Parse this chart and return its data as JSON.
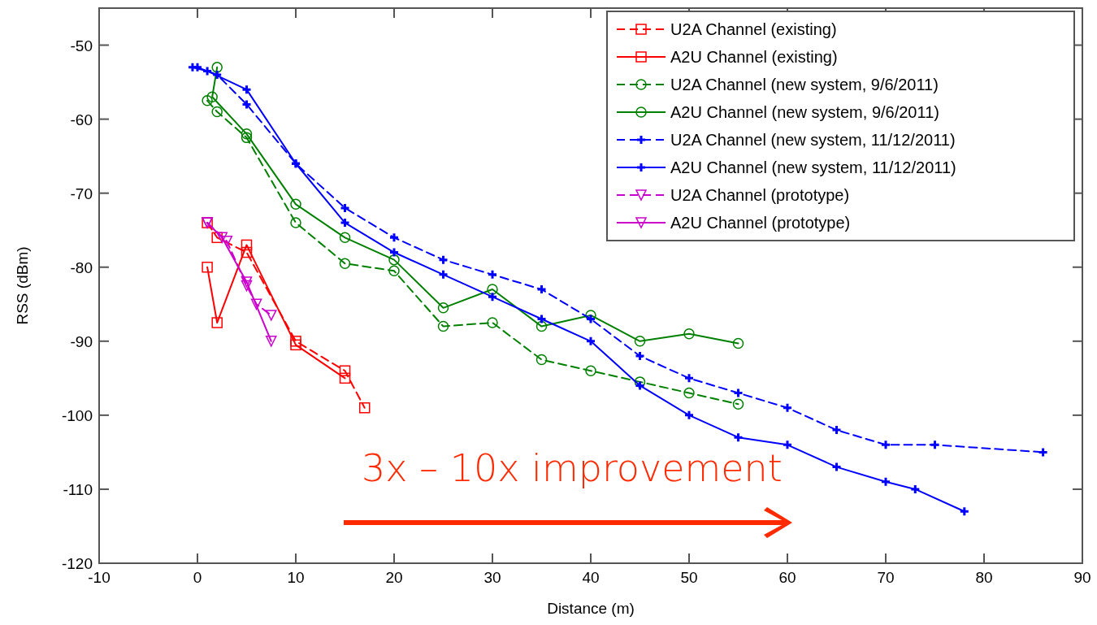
{
  "chart_data": {
    "type": "line",
    "xlabel": "Distance (m)",
    "ylabel": "RSS (dBm)",
    "xlim": [
      -10,
      90
    ],
    "ylim": [
      -120,
      -45
    ],
    "xticks": [
      -10,
      0,
      10,
      20,
      30,
      40,
      50,
      60,
      70,
      80,
      90
    ],
    "yticks": [
      -120,
      -110,
      -100,
      -90,
      -80,
      -70,
      -60,
      -50
    ],
    "grid": false,
    "legend": "top right",
    "series": [
      {
        "name": "U2A Channel (existing)",
        "color": "#ff0000",
        "marker": "square",
        "line_style": "dashed",
        "x": [
          1,
          2,
          5,
          10,
          15,
          17
        ],
        "values": [
          -74,
          -76,
          -78,
          -90,
          -94,
          -99
        ]
      },
      {
        "name": "A2U Channel (existing)",
        "color": "#ff0000",
        "marker": "square",
        "line_style": "solid",
        "x": [
          1,
          2,
          5,
          10,
          15
        ],
        "values": [
          -80,
          -87.5,
          -77,
          -90.5,
          -95
        ]
      },
      {
        "name": "U2A Channel (new system, 9/6/2011)",
        "color": "#008000",
        "marker": "circle",
        "line_style": "dashed",
        "x": [
          1,
          2,
          5,
          10,
          15,
          20,
          25,
          30,
          35,
          40,
          45,
          50,
          55
        ],
        "values": [
          -57.5,
          -59,
          -62.5,
          -74,
          -79.5,
          -80.5,
          -88,
          -87.5,
          -92.5,
          -94,
          -95.5,
          -97,
          -98.5
        ]
      },
      {
        "name": "A2U Channel (new system, 9/6/2011)",
        "color": "#008000",
        "marker": "circle",
        "line_style": "solid",
        "x": [
          2,
          1.5,
          5,
          10,
          15,
          20,
          25,
          30,
          35,
          40,
          45,
          50,
          55
        ],
        "values": [
          -53,
          -57,
          -62,
          -71.5,
          -76,
          -79,
          -85.5,
          -83,
          -88,
          -86.5,
          -90,
          -89,
          -90.3
        ]
      },
      {
        "name": "U2A Channel (new system, 11/12/2011)",
        "color": "#0000ff",
        "marker": "cross",
        "line_style": "dashed",
        "x": [
          0,
          2,
          5,
          10,
          15,
          20,
          25,
          30,
          35,
          40,
          45,
          50,
          55,
          60,
          65,
          70,
          75,
          86
        ],
        "values": [
          -53,
          -54,
          -58,
          -66,
          -72,
          -76,
          -79,
          -81,
          -83,
          -87,
          -92,
          -95,
          -97,
          -99,
          -102,
          -104,
          -104,
          -105
        ]
      },
      {
        "name": "A2U Channel (new system, 11/12/2011)",
        "color": "#0000ff",
        "marker": "cross",
        "line_style": "solid",
        "x": [
          -0.5,
          1,
          5,
          10,
          15,
          20,
          25,
          30,
          35,
          40,
          45,
          50,
          55,
          60,
          65,
          70,
          73,
          78
        ],
        "values": [
          -53,
          -53.5,
          -56,
          -66,
          -74,
          -78,
          -81,
          -84,
          -87,
          -90,
          -96,
          -100,
          -103,
          -104,
          -107,
          -109,
          -110,
          -113
        ]
      },
      {
        "name": "U2A Channel (prototype)",
        "color": "#cc00cc",
        "marker": "triangle",
        "line_style": "dashed",
        "x": [
          1,
          3,
          5,
          6,
          7.5
        ],
        "values": [
          -74,
          -76.5,
          -82.5,
          -85,
          -86.5
        ]
      },
      {
        "name": "A2U Channel (prototype)",
        "color": "#cc00cc",
        "marker": "triangle",
        "line_style": "solid",
        "x": [
          1,
          2.5,
          5,
          7.5
        ],
        "values": [
          -74,
          -76,
          -82,
          -90
        ]
      }
    ],
    "annotations": [
      "3x – 10x improvement"
    ]
  }
}
